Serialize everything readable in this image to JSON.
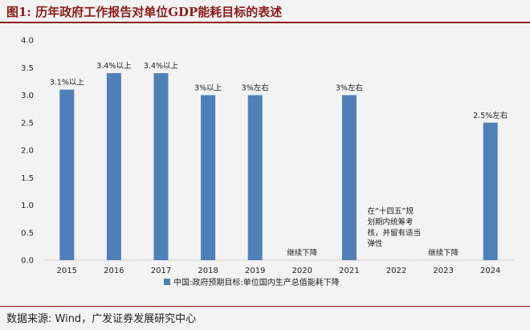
{
  "figure_title": "图1:  历年政府工作报告对单位GDP能耗目标的表述",
  "source_text": "数据来源: Wind，广发证券发展研究中心",
  "colors": {
    "bar": "#4f7fb8",
    "title": "#8b1a1a"
  },
  "chart_data": {
    "type": "bar",
    "categories": [
      "2015",
      "2016",
      "2017",
      "2018",
      "2019",
      "2020",
      "2021",
      "2022",
      "2023",
      "2024"
    ],
    "series": [
      {
        "name": "中国:政府预期目标:单位国内生产总值能耗下降",
        "values": [
          3.1,
          3.4,
          3.4,
          3.0,
          3.0,
          null,
          3.0,
          null,
          null,
          2.5
        ]
      }
    ],
    "data_labels": [
      "3.1%以上",
      "3.4%以上",
      "3.4%以上",
      "3%以上",
      "3%左右",
      "",
      "3%左右",
      "",
      "",
      "2.5%左右"
    ],
    "annotations": [
      {
        "category": "2020",
        "lines": [
          "继续下降"
        ]
      },
      {
        "category": "2022",
        "lines": [
          "在“十四五”规",
          "划期内统筹考",
          "核，并留有适当",
          "弹性"
        ]
      },
      {
        "category": "2023",
        "lines": [
          "继续下降"
        ]
      }
    ],
    "yticks": [
      "0.0",
      "0.5",
      "1.0",
      "1.5",
      "2.0",
      "2.5",
      "3.0",
      "3.5",
      "4.0"
    ],
    "ylim": [
      0,
      4
    ],
    "grid": false,
    "legend": "bottom"
  }
}
